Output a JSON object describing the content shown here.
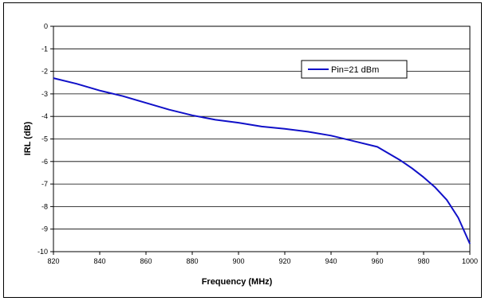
{
  "chart_data": {
    "type": "line",
    "title": "",
    "xlabel": "Frequency (MHz)",
    "ylabel": "IRL (dB)",
    "xlim": [
      820,
      1000
    ],
    "ylim": [
      -10,
      0
    ],
    "x_ticks": [
      820,
      840,
      860,
      880,
      900,
      920,
      940,
      960,
      980,
      1000
    ],
    "y_ticks": [
      0,
      -1,
      -2,
      -3,
      -4,
      -5,
      -6,
      -7,
      -8,
      -9,
      -10
    ],
    "grid": "horizontal",
    "legend_position": "top-right",
    "series": [
      {
        "name": "Pin=21 dBm",
        "color": "#1010c8",
        "x": [
          820,
          830,
          840,
          850,
          860,
          870,
          880,
          890,
          900,
          910,
          920,
          930,
          940,
          950,
          960,
          965,
          970,
          975,
          980,
          985,
          990,
          995,
          1000
        ],
        "y": [
          -2.3,
          -2.55,
          -2.85,
          -3.1,
          -3.4,
          -3.7,
          -3.95,
          -4.15,
          -4.28,
          -4.45,
          -4.55,
          -4.68,
          -4.85,
          -5.1,
          -5.35,
          -5.65,
          -5.95,
          -6.3,
          -6.7,
          -7.15,
          -7.7,
          -8.5,
          -9.65
        ]
      }
    ]
  }
}
